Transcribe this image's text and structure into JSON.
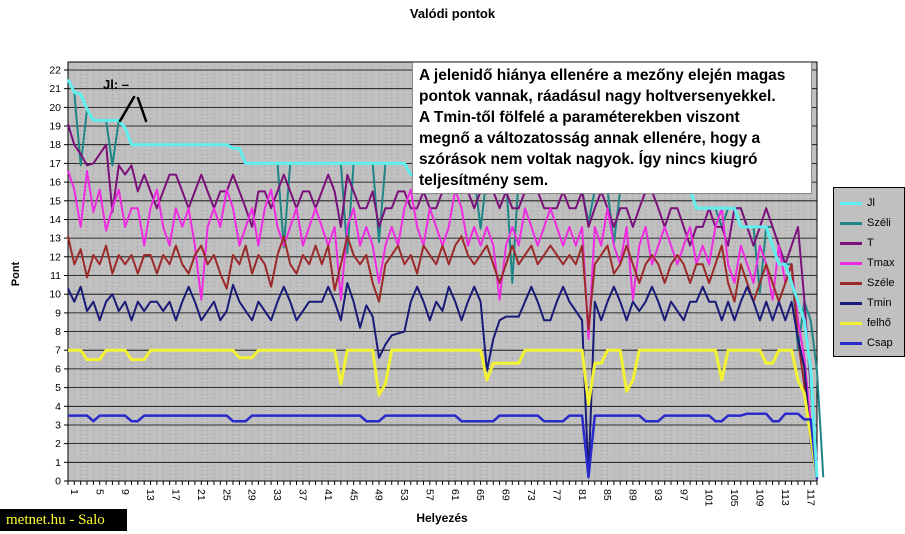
{
  "chart": {
    "title": "Valódi pontok",
    "x_axis_title": "Helyezés",
    "y_axis_title": "Pont",
    "plot_bg": "#c0c0c0"
  },
  "annotation_box": {
    "text": "A jelenidő hiánya ellenére a mezőny elején magas\npontok vannak, ráadásul nagy holtversenyekkel.\nA Tmin-től fölfelé a paraméterekben viszont\nmegnő a változatosság annak ellenére, hogy a\nszórások nem voltak nagyok. Így nincs kiugró\nteljesítmény sem."
  },
  "jl_note": {
    "label": "Jl: –"
  },
  "watermark": {
    "text": "metnet.hu - Salo",
    "fg": "#ffff33",
    "bg": "#000000"
  },
  "chart_data": {
    "type": "line",
    "title": "Valódi pontok",
    "xlabel": "Helyezés",
    "ylabel": "Pont",
    "x_start": 1,
    "x_count": 119,
    "ylim": [
      0,
      22
    ],
    "grid": "horizontal-major",
    "legend_position": "right",
    "y_tick_labels": [
      0,
      1,
      2,
      3,
      4,
      5,
      6,
      7,
      8,
      9,
      10,
      11,
      12,
      13,
      14,
      15,
      16,
      17,
      18,
      19,
      20,
      21,
      22
    ],
    "x_tick_labels": [
      1,
      5,
      9,
      13,
      17,
      21,
      25,
      29,
      33,
      37,
      41,
      45,
      49,
      53,
      57,
      61,
      65,
      69,
      73,
      77,
      81,
      85,
      89,
      93,
      97,
      101,
      105,
      109,
      113,
      117
    ],
    "series": [
      {
        "name": "Jl",
        "color": "#5fefef",
        "values": [
          21.5,
          20.8,
          20.7,
          19.9,
          19.3,
          19.3,
          19.3,
          19.3,
          19.3,
          18.9,
          18,
          18,
          18,
          18,
          18,
          18,
          18,
          18,
          18,
          18,
          18,
          18,
          18,
          18,
          18,
          18,
          17.8,
          17.8,
          17,
          17,
          17,
          17,
          17,
          17,
          17,
          17,
          17,
          17,
          17,
          17,
          17,
          17,
          17,
          17,
          17,
          17,
          17,
          17,
          17,
          17,
          17,
          17,
          17,
          17,
          16.4,
          16.4,
          16.4,
          16.4,
          16.4,
          16.4,
          16.4,
          16.4,
          16.4,
          16.4,
          16.4,
          16.4,
          16.4,
          16.4,
          16.4,
          16.4,
          16.4,
          16.4,
          16.4,
          16.4,
          15.6,
          15.6,
          15.6,
          15.6,
          15.6,
          15.6,
          15.6,
          15.6,
          15.6,
          15.6,
          15.6,
          15.6,
          15.6,
          15.6,
          15.6,
          15.6,
          15.6,
          15.6,
          15.6,
          15.6,
          15.6,
          15.6,
          15.6,
          15.6,
          15.6,
          14.6,
          14.6,
          14.6,
          14.6,
          14.6,
          14.6,
          14.6,
          13.6,
          13.6,
          13.6,
          13.6,
          13.6,
          12.6,
          11.6,
          11.6,
          10.6,
          9.6,
          8.6,
          5.9,
          0.2
        ]
      },
      {
        "name": "Széli",
        "color": "#1f8585",
        "values": [
          21.5,
          20.8,
          16.9,
          19.9,
          19.3,
          19.3,
          19.3,
          16.9,
          19.3,
          18.9,
          18,
          18,
          18,
          18,
          18,
          18,
          18,
          18,
          18,
          18,
          18,
          18,
          18,
          18,
          18,
          18,
          17.8,
          17.8,
          17,
          17,
          17,
          17,
          17,
          17,
          12.5,
          17,
          17,
          17,
          17,
          17,
          17,
          17,
          17,
          17,
          12.2,
          17,
          17,
          17,
          17,
          12.8,
          17,
          17,
          17,
          17,
          16.4,
          16.4,
          16.4,
          16.4,
          16.4,
          16.4,
          16.4,
          16.4,
          16.4,
          16.4,
          16.4,
          13.5,
          16.4,
          16.4,
          16.4,
          16.4,
          10.6,
          16.4,
          16.4,
          16.4,
          15.6,
          15.6,
          15.6,
          15.6,
          15.6,
          15.6,
          15.6,
          15.6,
          13.8,
          15.6,
          15.6,
          15.6,
          12.7,
          15.6,
          15.6,
          15.6,
          15.6,
          15.6,
          15.6,
          15.6,
          15.6,
          15.6,
          15.6,
          15.6,
          15.6,
          14.6,
          14.6,
          14.6,
          14.6,
          13.6,
          14.6,
          14.6,
          14.6,
          13.6,
          13.6,
          10.1,
          13.6,
          13.6,
          12.6,
          11.6,
          11.6,
          7,
          9.6,
          8.6,
          5.9,
          0.2
        ]
      },
      {
        "name": "T",
        "color": "#7b107b",
        "values": [
          19.1,
          18,
          17.5,
          16.9,
          17,
          17.5,
          18,
          14.4,
          16.9,
          16.4,
          16.9,
          15.5,
          16.4,
          15.5,
          14.6,
          15.5,
          16.4,
          16.4,
          15.5,
          14.6,
          15.5,
          16.4,
          15.5,
          14.6,
          15.5,
          15.5,
          16.4,
          15.5,
          14.6,
          13.6,
          15.5,
          15.5,
          14.6,
          15.5,
          16.4,
          15.5,
          14.6,
          15.5,
          15.5,
          14.6,
          15.5,
          16.4,
          15.5,
          13.6,
          16.4,
          15.5,
          14.6,
          14.6,
          15.5,
          13.6,
          14.6,
          14.6,
          15.5,
          15.5,
          14.6,
          14.6,
          15.5,
          14.6,
          14.6,
          15.5,
          15.5,
          16.4,
          16.4,
          15.5,
          14.6,
          15.5,
          16.4,
          15.5,
          14.6,
          15.5,
          14.6,
          14.6,
          15.5,
          16.4,
          15.5,
          14.6,
          14.6,
          14.6,
          15.5,
          14.6,
          14.6,
          15.5,
          13.6,
          14.6,
          15.5,
          14.6,
          13.6,
          14.6,
          14.6,
          13.6,
          14.6,
          15.5,
          15.5,
          14.6,
          13.6,
          14.6,
          14.6,
          13.6,
          12.6,
          13.6,
          13.6,
          14.6,
          13.6,
          13.6,
          12.6,
          14.6,
          14.6,
          13.6,
          12.6,
          13.6,
          14.6,
          13.6,
          12.6,
          11.6,
          12.6,
          13.6,
          9.7,
          5,
          1.1
        ]
      },
      {
        "name": "Tmax",
        "color": "#ee2be0",
        "values": [
          16.6,
          15.6,
          13.6,
          16.6,
          14.4,
          15.6,
          13.4,
          14.6,
          15.6,
          13.6,
          14.6,
          14.6,
          12.6,
          14.6,
          15.6,
          13.6,
          12.6,
          14.6,
          13.6,
          14.6,
          12.6,
          9.7,
          13.6,
          14.6,
          13.6,
          15.6,
          14.6,
          12.6,
          13.6,
          14.6,
          12.6,
          14.6,
          15.6,
          13.6,
          12.6,
          13.6,
          14.6,
          12.6,
          13.6,
          14.6,
          13.6,
          12.6,
          13.6,
          9.7,
          13.6,
          14.6,
          12.6,
          13.6,
          12.6,
          10.6,
          12.6,
          13.6,
          12.6,
          14.6,
          15.6,
          13.6,
          12.6,
          14.6,
          13.6,
          12.6,
          13.6,
          15.6,
          14.6,
          12.6,
          13.6,
          12.6,
          13.6,
          12.6,
          9.7,
          12.6,
          13.6,
          12.6,
          14.6,
          13.6,
          12.6,
          13.6,
          14.6,
          13.6,
          12.6,
          13.6,
          12.6,
          13.6,
          7.6,
          13.6,
          12.6,
          14.6,
          12.6,
          11.6,
          13.6,
          9.7,
          12.6,
          13.6,
          11.6,
          12.6,
          13.6,
          12.6,
          11.6,
          12.6,
          13.6,
          11.6,
          12.6,
          11.6,
          13.6,
          14.6,
          11.6,
          10.6,
          12.6,
          11.6,
          10.6,
          12.6,
          11.6,
          9.7,
          12.6,
          10.6,
          11.6,
          8.6,
          6.6,
          3.1,
          0.3
        ]
      },
      {
        "name": "Széle",
        "color": "#9c2a2a",
        "values": [
          13.1,
          11.6,
          12.4,
          10.9,
          12.1,
          11.6,
          12.6,
          11.1,
          12.1,
          11.6,
          12.1,
          11.1,
          12.1,
          12.1,
          11.1,
          12.1,
          11.6,
          12.6,
          11.6,
          11.1,
          12.1,
          12.6,
          11.6,
          12.1,
          11.1,
          10.3,
          12.1,
          11.6,
          12.6,
          11.1,
          12.1,
          11.6,
          10.4,
          12.1,
          13.1,
          11.6,
          11.1,
          12.1,
          11.6,
          12.6,
          11.6,
          12.6,
          10.2,
          11.6,
          13.1,
          12.1,
          11.6,
          12.1,
          10.6,
          9.6,
          11.6,
          12.1,
          12.6,
          11.6,
          12.1,
          11.1,
          12.6,
          12.1,
          11.6,
          12.6,
          11.6,
          12.6,
          13.1,
          12.1,
          11.6,
          12.1,
          12.6,
          11.6,
          10.6,
          11.6,
          12.6,
          11.6,
          12.1,
          12.6,
          11.6,
          12.1,
          12.6,
          12.1,
          11.6,
          12.1,
          11.6,
          12.6,
          8.1,
          11.6,
          12.1,
          12.6,
          11.1,
          11.6,
          12.6,
          11.6,
          10.6,
          11.6,
          12.1,
          11.6,
          10.6,
          11.6,
          12.1,
          11.6,
          10.6,
          11.6,
          11.6,
          10.6,
          11.6,
          12.6,
          10.6,
          9.6,
          11.6,
          10.6,
          9.6,
          10.6,
          11.6,
          10.6,
          9.6,
          10.6,
          11.6,
          7.6,
          5.1,
          2.1,
          0.3
        ]
      },
      {
        "name": "Tmin",
        "color": "#1a1a78",
        "values": [
          10.3,
          9.6,
          10.4,
          9.1,
          9.6,
          8.6,
          9.6,
          10,
          9.1,
          9.6,
          8.6,
          9.6,
          9.1,
          9.6,
          9.6,
          9.1,
          9.6,
          8.6,
          9.6,
          10.4,
          9.6,
          8.6,
          9.1,
          9.6,
          8.6,
          9.1,
          10.5,
          9.6,
          9.1,
          8.6,
          9.6,
          9.1,
          8.6,
          9.6,
          10.4,
          9.6,
          8.6,
          9.1,
          9.6,
          9.6,
          9.6,
          10.4,
          9.6,
          8.6,
          10.6,
          9.6,
          8.2,
          9.4,
          8.8,
          6.6,
          7.3,
          7.8,
          7.9,
          8,
          9.6,
          10.4,
          9.6,
          8.6,
          9.6,
          9.1,
          10.4,
          9.6,
          8.6,
          9.6,
          10.4,
          9.6,
          5.9,
          7.6,
          8.6,
          8.8,
          8.8,
          8.8,
          9.6,
          10.4,
          9.6,
          8.6,
          8.6,
          9.6,
          10.4,
          9.6,
          9.1,
          8.6,
          0.2,
          9.6,
          8.6,
          9.6,
          10.4,
          9.6,
          8.6,
          9.6,
          9.1,
          9.6,
          10.4,
          9.6,
          8.6,
          9.6,
          9.1,
          8.6,
          9.6,
          9.6,
          10.4,
          9.6,
          9.6,
          8.6,
          9.6,
          8.6,
          9.6,
          10.4,
          9.6,
          8.6,
          9.6,
          8.6,
          9.6,
          8.6,
          9.6,
          7.6,
          6.1,
          2.1,
          0.1
        ]
      },
      {
        "name": "felhő",
        "color": "#f2f233",
        "values": [
          7,
          7,
          7,
          6.5,
          6.5,
          6.5,
          7,
          7,
          7,
          7,
          6.5,
          6.5,
          6.5,
          7,
          7,
          7,
          7,
          7,
          7,
          7,
          7,
          7,
          7,
          7,
          7,
          7,
          7,
          6.6,
          6.6,
          6.6,
          7,
          7,
          7,
          7,
          7,
          7,
          7,
          7,
          7,
          7,
          7,
          7,
          7,
          5.2,
          7,
          7,
          7,
          7,
          7,
          4.6,
          5.2,
          7,
          7,
          7,
          7,
          7,
          7,
          7,
          7,
          7,
          7,
          7,
          7,
          7,
          7,
          7,
          5.4,
          6.3,
          6.3,
          6.3,
          6.3,
          6.3,
          7,
          7,
          7,
          7,
          7,
          7,
          7,
          7,
          7,
          7,
          4.1,
          6.3,
          6.3,
          7,
          7,
          7,
          4.8,
          5.4,
          7,
          7,
          7,
          7,
          7,
          7,
          7,
          7,
          7,
          7,
          7,
          7,
          7,
          5.4,
          7,
          7,
          7,
          7,
          7,
          7,
          6.3,
          6.3,
          7,
          7,
          7,
          5.4,
          4.7,
          2.4,
          0.2
        ]
      },
      {
        "name": "Csap",
        "color": "#2929cc",
        "values": [
          3.5,
          3.5,
          3.5,
          3.5,
          3.2,
          3.5,
          3.5,
          3.5,
          3.5,
          3.5,
          3.2,
          3.2,
          3.5,
          3.5,
          3.5,
          3.5,
          3.5,
          3.5,
          3.5,
          3.5,
          3.5,
          3.5,
          3.5,
          3.5,
          3.5,
          3.5,
          3.2,
          3.2,
          3.2,
          3.5,
          3.5,
          3.5,
          3.5,
          3.5,
          3.5,
          3.5,
          3.5,
          3.5,
          3.5,
          3.5,
          3.5,
          3.5,
          3.5,
          3.5,
          3.5,
          3.5,
          3.5,
          3.2,
          3.2,
          3.2,
          3.5,
          3.5,
          3.5,
          3.5,
          3.5,
          3.5,
          3.5,
          3.5,
          3.5,
          3.5,
          3.5,
          3.5,
          3.2,
          3.2,
          3.2,
          3.2,
          3.2,
          3.2,
          3.5,
          3.5,
          3.5,
          3.5,
          3.5,
          3.5,
          3.5,
          3.2,
          3.2,
          3.2,
          3.2,
          3.5,
          3.5,
          3.5,
          0.2,
          3.5,
          3.5,
          3.5,
          3.5,
          3.5,
          3.5,
          3.5,
          3.5,
          3.2,
          3.2,
          3.2,
          3.5,
          3.5,
          3.5,
          3.5,
          3.5,
          3.5,
          3.5,
          3.5,
          3.2,
          3.2,
          3.5,
          3.5,
          3.5,
          3.6,
          3.6,
          3.6,
          3.6,
          3.2,
          3.2,
          3.6,
          3.6,
          3.6,
          3.3,
          3.3,
          0.1
        ]
      }
    ]
  }
}
